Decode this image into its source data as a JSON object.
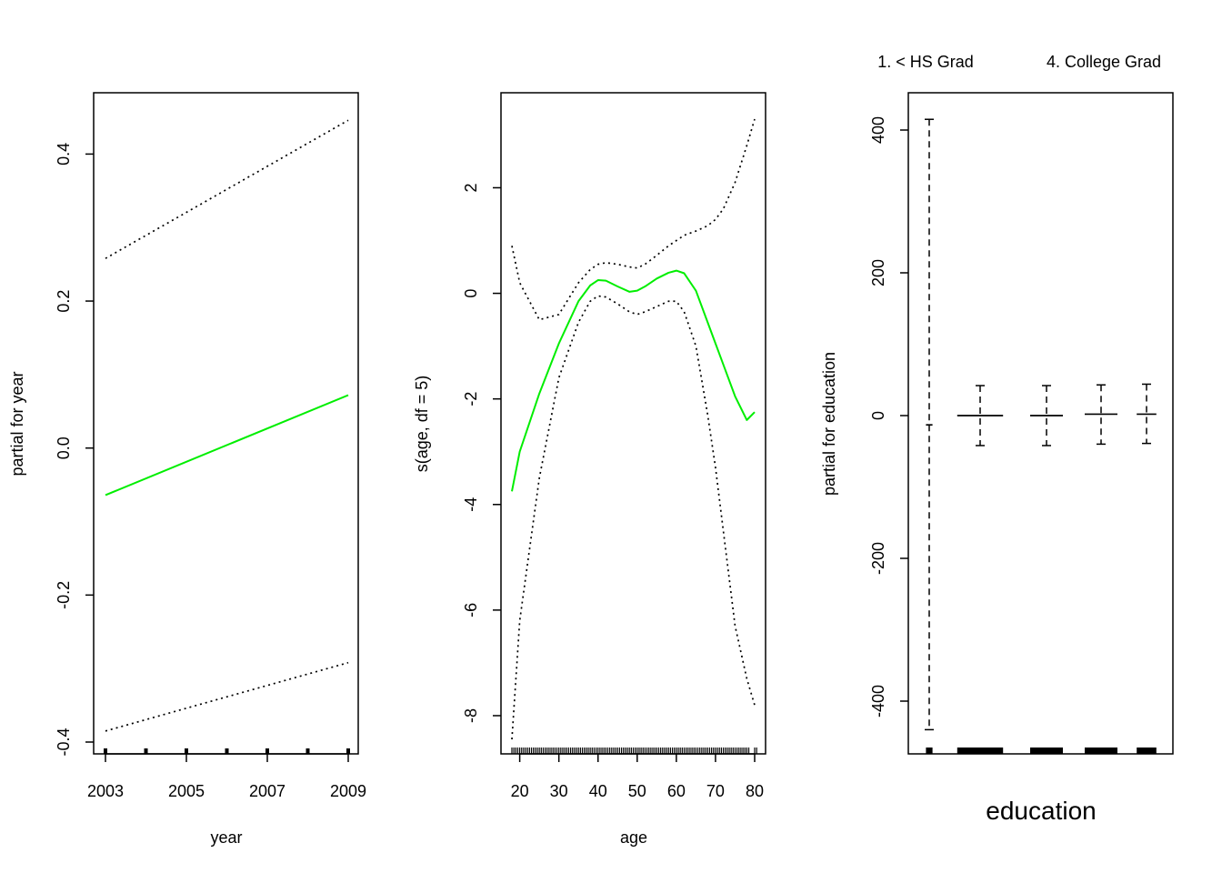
{
  "chart_data": [
    {
      "type": "line",
      "panel": "year",
      "xlabel": "year",
      "ylabel": "partial for year",
      "xlim": [
        2003,
        2009
      ],
      "ylim": [
        -0.4,
        0.45
      ],
      "x_ticks": [
        2003,
        2005,
        2007,
        2009
      ],
      "y_ticks": [
        -0.4,
        -0.2,
        0.0,
        0.2,
        0.4
      ],
      "y_tick_labels": [
        "-0.4",
        "-0.2",
        "0.0",
        "0.2",
        "0.4"
      ],
      "rug": [
        2003,
        2004,
        2005,
        2006,
        2007,
        2008,
        2009
      ],
      "colors": {
        "fit": "#00ee00",
        "band": "#000000"
      },
      "x": [
        2003,
        2009
      ],
      "fit": [
        -0.064,
        0.072
      ],
      "upper": [
        0.258,
        0.446
      ],
      "lower": [
        -0.385,
        -0.292
      ]
    },
    {
      "type": "line",
      "panel": "age",
      "xlabel": "age",
      "ylabel": "s(age, df = 5)",
      "xlim": [
        18,
        80
      ],
      "ylim": [
        -8.5,
        3.3
      ],
      "x_ticks": [
        20,
        30,
        40,
        50,
        60,
        70,
        80
      ],
      "y_ticks": [
        -8,
        -6,
        -4,
        -2,
        0,
        2
      ],
      "y_tick_labels": [
        "-8",
        "-6",
        "-4",
        "-2",
        "0",
        "2"
      ],
      "rug": [
        18,
        19,
        20,
        21,
        22,
        23,
        24,
        25,
        26,
        27,
        28,
        29,
        30,
        31,
        32,
        33,
        34,
        35,
        36,
        37,
        38,
        39,
        40,
        41,
        42,
        43,
        44,
        45,
        46,
        47,
        48,
        49,
        50,
        51,
        52,
        53,
        54,
        55,
        56,
        57,
        58,
        59,
        60,
        61,
        62,
        63,
        64,
        65,
        66,
        67,
        68,
        69,
        70,
        71,
        72,
        73,
        74,
        75,
        76,
        77,
        78,
        80
      ],
      "colors": {
        "fit": "#00ee00",
        "band": "#000000"
      },
      "x": [
        18,
        20,
        25,
        30,
        35,
        38,
        40,
        42,
        45,
        48,
        50,
        52,
        55,
        58,
        60,
        62,
        65,
        68,
        70,
        72,
        75,
        78,
        80
      ],
      "fit": [
        -3.75,
        -3.0,
        -1.9,
        -0.95,
        -0.15,
        0.15,
        0.25,
        0.24,
        0.13,
        0.03,
        0.05,
        0.13,
        0.28,
        0.39,
        0.43,
        0.38,
        0.05,
        -0.55,
        -0.95,
        -1.35,
        -1.95,
        -2.4,
        -2.25
      ],
      "upper": [
        0.9,
        0.2,
        -0.5,
        -0.4,
        0.2,
        0.45,
        0.55,
        0.58,
        0.55,
        0.5,
        0.48,
        0.55,
        0.72,
        0.9,
        1.0,
        1.1,
        1.18,
        1.28,
        1.4,
        1.6,
        2.1,
        2.8,
        3.3
      ],
      "lower": [
        -8.45,
        -6.2,
        -3.5,
        -1.6,
        -0.55,
        -0.15,
        -0.05,
        -0.07,
        -0.2,
        -0.35,
        -0.4,
        -0.35,
        -0.25,
        -0.15,
        -0.15,
        -0.35,
        -1.0,
        -2.3,
        -3.3,
        -4.5,
        -6.3,
        -7.3,
        -7.8
      ]
    },
    {
      "type": "errorbar",
      "panel": "education",
      "xlabel": "education",
      "ylabel": "partial for education",
      "ylim": [
        -470,
        420
      ],
      "y_ticks": [
        -400,
        -200,
        0,
        200,
        400
      ],
      "y_tick_labels": [
        "-400",
        "-200",
        "0",
        "200",
        "400"
      ],
      "category_labels": [
        "1. < HS Grad",
        "4. College Grad"
      ],
      "category_label_positions": [
        1,
        4
      ],
      "levels": [
        {
          "pos": 1,
          "estimate": -13,
          "upper": 415,
          "lower": -440,
          "width": 0.05
        },
        {
          "pos": 2,
          "estimate": 0,
          "upper": 42,
          "lower": -42,
          "width": 0.35
        },
        {
          "pos": 3,
          "estimate": 0,
          "upper": 42,
          "lower": -42,
          "width": 0.25
        },
        {
          "pos": 4,
          "estimate": 2,
          "upper": 43,
          "lower": -40,
          "width": 0.25
        },
        {
          "pos": 5,
          "estimate": 2,
          "upper": 44,
          "lower": -39,
          "width": 0.15
        }
      ],
      "colors": {
        "line": "#000000"
      }
    }
  ]
}
